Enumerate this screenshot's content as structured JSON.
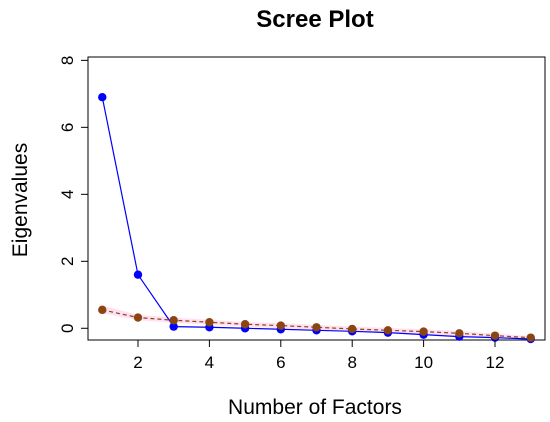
{
  "chart_data": {
    "type": "line",
    "title": "Scree Plot",
    "xlabel": "Number of Factors",
    "ylabel": "Eigenvalues",
    "xlim": [
      0.6,
      13.4
    ],
    "ylim": [
      -0.35,
      8.1
    ],
    "xticks": [
      2,
      4,
      6,
      8,
      10,
      12
    ],
    "yticks": [
      0,
      2,
      4,
      6,
      8
    ],
    "grid": false,
    "series": [
      {
        "style": "solid",
        "color": "#0000ff",
        "x": [
          1,
          2,
          3,
          4,
          5,
          6,
          7,
          8,
          9,
          10,
          11,
          12,
          13
        ],
        "values": [
          6.9,
          1.6,
          0.05,
          0.03,
          0.0,
          -0.03,
          -0.06,
          -0.09,
          -0.13,
          -0.19,
          -0.25,
          -0.28,
          -0.32
        ]
      },
      {
        "style": "dashed",
        "color": "#8b4513",
        "band_color": "#ffd6ee",
        "x": [
          1,
          2,
          3,
          4,
          5,
          6,
          7,
          8,
          9,
          10,
          11,
          12,
          13
        ],
        "values": [
          0.55,
          0.32,
          0.24,
          0.18,
          0.12,
          0.08,
          0.03,
          -0.02,
          -0.06,
          -0.1,
          -0.15,
          -0.22,
          -0.28
        ],
        "band_lower": [
          0.45,
          0.24,
          0.16,
          0.11,
          0.05,
          0.01,
          -0.04,
          -0.09,
          -0.13,
          -0.17,
          -0.22,
          -0.28,
          -0.33
        ],
        "band_upper": [
          0.68,
          0.4,
          0.32,
          0.25,
          0.19,
          0.15,
          0.1,
          0.05,
          0.01,
          -0.03,
          -0.08,
          -0.16,
          -0.23
        ]
      }
    ]
  }
}
